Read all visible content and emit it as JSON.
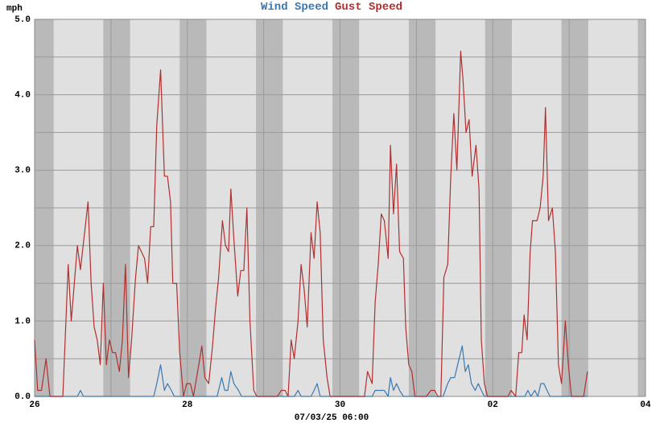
{
  "chart_data": {
    "type": "line",
    "y_label": "mph",
    "x_label": "07/03/25 06:00",
    "xlim": [
      0,
      8
    ],
    "xticks": [
      {
        "value": 0,
        "label": "26"
      },
      {
        "value": 2,
        "label": "28"
      },
      {
        "value": 4,
        "label": "30"
      },
      {
        "value": 6,
        "label": "02"
      },
      {
        "value": 8,
        "label": "04"
      }
    ],
    "ylim": [
      0,
      5
    ],
    "yticks": [
      {
        "value": 0,
        "label": "0.0"
      },
      {
        "value": 1,
        "label": "1.0"
      },
      {
        "value": 2,
        "label": "2.0"
      },
      {
        "value": 3,
        "label": "3.0"
      },
      {
        "value": 4,
        "label": "4.0"
      },
      {
        "value": 5,
        "label": "5.0"
      }
    ],
    "grid": true,
    "series": [
      {
        "name": "Wind Speed",
        "color": "#3a78b0",
        "x": [
          0,
          0.56,
          0.6,
          0.64,
          1.56,
          1.6,
          1.65,
          1.7,
          1.74,
          1.79,
          1.83,
          2.39,
          2.45,
          2.49,
          2.53,
          2.57,
          2.61,
          2.67,
          2.71,
          3.4,
          3.45,
          3.49,
          3.62,
          3.66,
          3.7,
          3.74,
          4.42,
          4.46,
          4.54,
          4.58,
          4.63,
          4.66,
          4.7,
          4.74,
          4.78,
          4.83,
          5.35,
          5.41,
          5.45,
          5.5,
          5.54,
          5.6,
          5.64,
          5.68,
          5.72,
          5.77,
          5.81,
          5.85,
          5.89,
          6.42,
          6.46,
          6.5,
          6.55,
          6.59,
          6.63,
          6.67,
          6.71,
          6.75,
          7.24
        ],
        "values": [
          0,
          0,
          0.08,
          0,
          0,
          0.17,
          0.42,
          0.08,
          0.17,
          0.08,
          0,
          0,
          0.25,
          0.08,
          0.08,
          0.33,
          0.17,
          0.08,
          0,
          0,
          0.08,
          0,
          0,
          0.08,
          0.17,
          0,
          0,
          0.08,
          0.08,
          0.08,
          0,
          0.25,
          0.08,
          0.17,
          0.08,
          0,
          0,
          0.17,
          0.25,
          0.25,
          0.42,
          0.67,
          0.33,
          0.42,
          0.17,
          0.08,
          0.17,
          0.08,
          0,
          0,
          0.08,
          0,
          0.08,
          0,
          0.17,
          0.17,
          0.08,
          0,
          0
        ]
      },
      {
        "name": "Gust Speed",
        "color": "#b03030",
        "x": [
          0,
          0.04,
          0.09,
          0.15,
          0.2,
          0.37,
          0.44,
          0.48,
          0.56,
          0.6,
          0.7,
          0.74,
          0.78,
          0.82,
          0.86,
          0.9,
          0.94,
          0.98,
          1.02,
          1.06,
          1.11,
          1.15,
          1.19,
          1.23,
          1.27,
          1.32,
          1.36,
          1.44,
          1.48,
          1.52,
          1.56,
          1.6,
          1.65,
          1.7,
          1.74,
          1.78,
          1.81,
          1.86,
          1.9,
          1.95,
          1.99,
          2.04,
          2.08,
          2.15,
          2.19,
          2.23,
          2.28,
          2.33,
          2.37,
          2.41,
          2.46,
          2.5,
          2.54,
          2.57,
          2.61,
          2.66,
          2.7,
          2.74,
          2.78,
          2.82,
          2.87,
          2.91,
          3.18,
          3.23,
          3.28,
          3.32,
          3.36,
          3.4,
          3.45,
          3.49,
          3.53,
          3.57,
          3.62,
          3.66,
          3.7,
          3.74,
          3.78,
          3.83,
          3.87,
          4.32,
          4.36,
          4.42,
          4.46,
          4.5,
          4.54,
          4.58,
          4.63,
          4.66,
          4.7,
          4.74,
          4.78,
          4.83,
          4.86,
          4.9,
          4.94,
          4.98,
          5.13,
          5.19,
          5.24,
          5.28,
          5.32,
          5.36,
          5.41,
          5.45,
          5.49,
          5.53,
          5.58,
          5.61,
          5.65,
          5.69,
          5.73,
          5.78,
          5.82,
          5.85,
          5.89,
          5.93,
          6.2,
          6.24,
          6.3,
          6.34,
          6.38,
          6.41,
          6.45,
          6.49,
          6.52,
          6.58,
          6.62,
          6.66,
          6.69,
          6.73,
          6.78,
          6.82,
          6.86,
          6.9,
          6.95,
          6.99,
          7.03,
          7.19,
          7.24
        ],
        "values": [
          0.75,
          0.08,
          0.08,
          0.5,
          0,
          0,
          1.75,
          1.0,
          2.0,
          1.68,
          2.58,
          1.5,
          0.92,
          0.75,
          0.42,
          1.5,
          0.42,
          0.75,
          0.58,
          0.58,
          0.33,
          0.75,
          1.75,
          0.25,
          0.75,
          1.55,
          2.0,
          1.83,
          1.5,
          2.25,
          2.25,
          3.6,
          4.33,
          2.92,
          2.92,
          2.58,
          1.5,
          1.5,
          0.58,
          0,
          0.17,
          0.17,
          0,
          0.42,
          0.67,
          0.25,
          0.17,
          0.67,
          1.17,
          1.58,
          2.33,
          2.0,
          1.92,
          2.75,
          2.08,
          1.33,
          1.67,
          1.67,
          2.5,
          1.0,
          0.08,
          0,
          0,
          0.08,
          0.08,
          0,
          0.75,
          0.5,
          1.0,
          1.75,
          1.42,
          0.92,
          2.17,
          1.83,
          2.58,
          2.17,
          0.75,
          0.25,
          0,
          0,
          0.33,
          0.17,
          1.25,
          1.75,
          2.42,
          2.33,
          1.83,
          3.33,
          2.42,
          3.08,
          1.92,
          1.83,
          0.92,
          0.42,
          0.33,
          0,
          0,
          0.08,
          0.08,
          0,
          0,
          1.58,
          1.75,
          2.92,
          3.75,
          3.0,
          4.58,
          4.2,
          3.5,
          3.67,
          2.92,
          3.33,
          2.75,
          0.75,
          0.17,
          0,
          0,
          0.08,
          0,
          0.58,
          0.58,
          1.08,
          0.75,
          1.92,
          2.33,
          2.33,
          2.5,
          2.92,
          3.83,
          2.33,
          2.5,
          1.92,
          0.42,
          0.17,
          1.0,
          0.42,
          0,
          0,
          0.33
        ]
      }
    ]
  }
}
